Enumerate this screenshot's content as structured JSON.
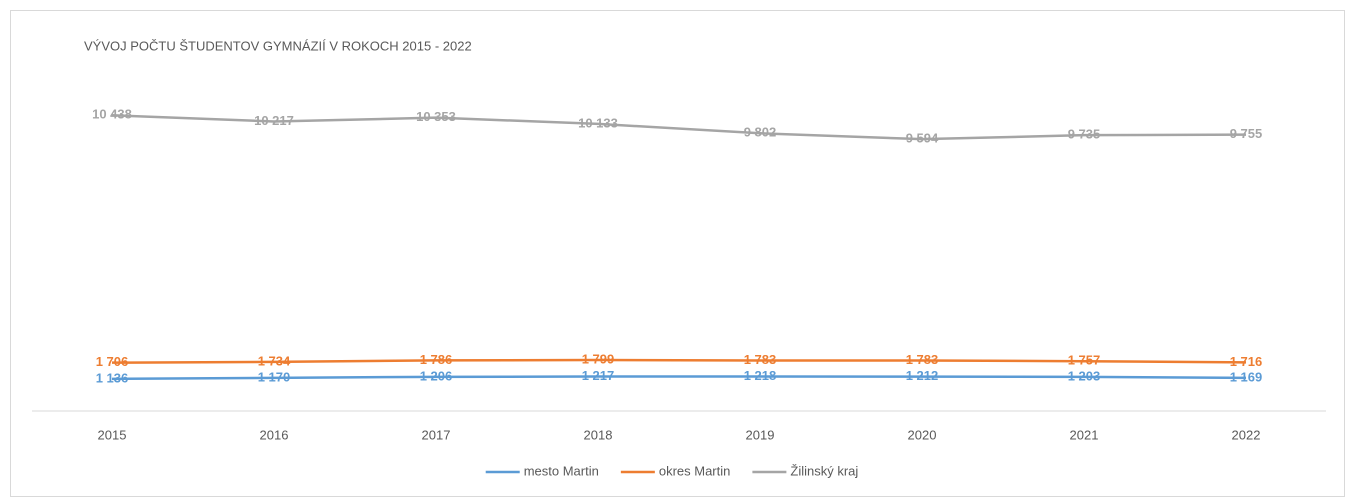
{
  "chart_data": {
    "type": "line",
    "title": "VÝVOJ POČTU ŠTUDENTOV GYMNÁZIÍ V ROKOCH 2015 - 2022",
    "categories": [
      "2015",
      "2016",
      "2017",
      "2018",
      "2019",
      "2020",
      "2021",
      "2022"
    ],
    "series": [
      {
        "name": "mesto Martin",
        "color": "#5b9bd5",
        "values": [
          1136,
          1170,
          1206,
          1217,
          1218,
          1212,
          1203,
          1169
        ],
        "value_labels": [
          "1 136",
          "1 170",
          "1 206",
          "1 217",
          "1 218",
          "1 212",
          "1 203",
          "1 169"
        ]
      },
      {
        "name": "okres Martin",
        "color": "#ed7d31",
        "values": [
          1706,
          1734,
          1786,
          1799,
          1783,
          1783,
          1757,
          1716
        ],
        "value_labels": [
          "1 706",
          "1 734",
          "1 786",
          "1 799",
          "1 783",
          "1 783",
          "1 757",
          "1 716"
        ]
      },
      {
        "name": "Žilinský kraj",
        "color": "#a5a5a5",
        "values": [
          10438,
          10217,
          10353,
          10133,
          9802,
          9594,
          9735,
          9755
        ],
        "value_labels": [
          "10 438",
          "10 217",
          "10 353",
          "10 133",
          "9 802",
          "9 594",
          "9 735",
          "9 755"
        ]
      }
    ],
    "ylim": [
      0,
      12000
    ],
    "legend": "bottom"
  }
}
